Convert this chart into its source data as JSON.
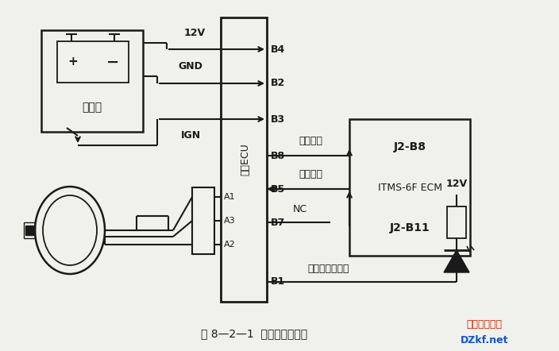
{
  "bg_color": "#f0f0ec",
  "line_color": "#1a1a1a",
  "title": "图 8—2—1  防盗系统电路图",
  "watermark1": "电子开发社区",
  "watermark2": "DZkf.net",
  "watermark1_color": "#cc2200",
  "watermark2_color": "#1155cc"
}
